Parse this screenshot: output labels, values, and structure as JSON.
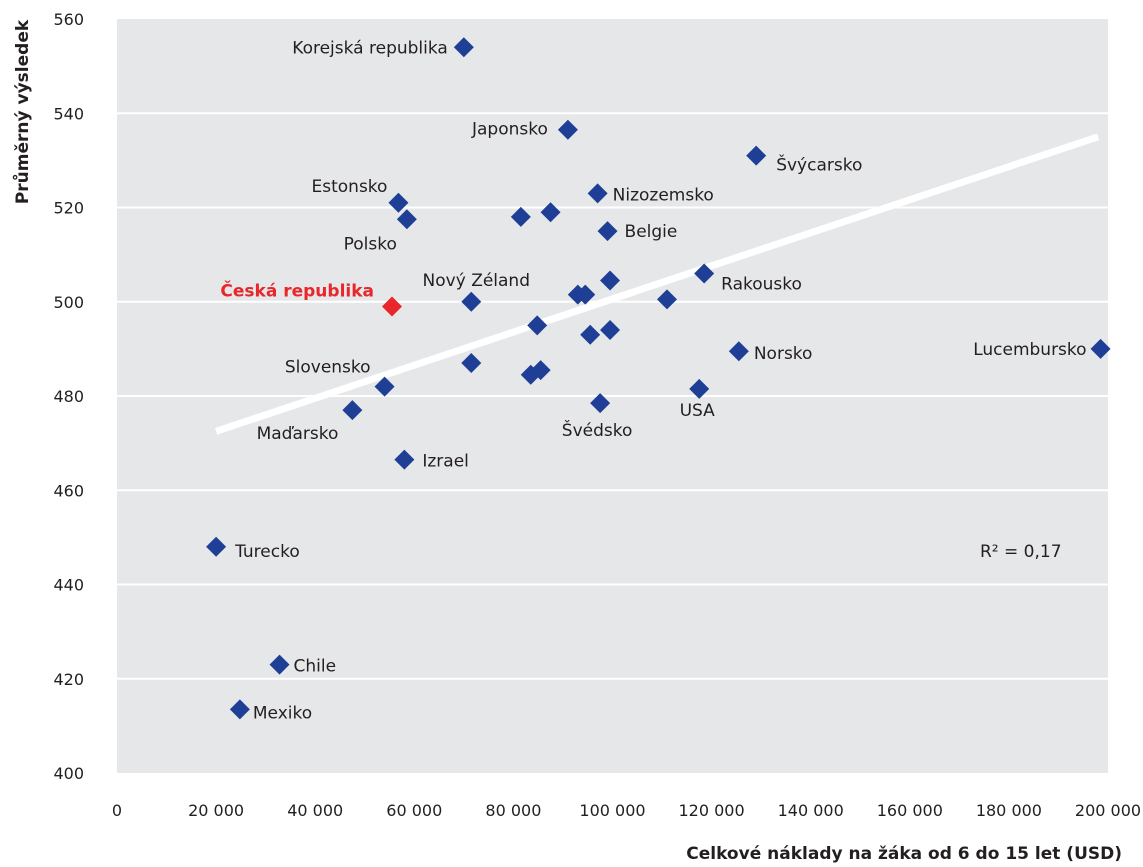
{
  "chart_data": {
    "type": "scatter",
    "title": "",
    "xlabel": "Celkové náklady na žáka od 6 do 15 let (USD)",
    "ylabel": "Průměrný výsledek",
    "xlim": [
      0,
      200000
    ],
    "ylim": [
      400,
      560
    ],
    "x_ticks": [
      0,
      20000,
      40000,
      60000,
      80000,
      100000,
      120000,
      140000,
      160000,
      180000,
      200000
    ],
    "x_tick_labels": [
      "0",
      "20 000",
      "40 000",
      "60 000",
      "80 000",
      "100 000",
      "120 000",
      "140 000",
      "160 000",
      "180 000",
      "200 000"
    ],
    "y_ticks": [
      400,
      420,
      440,
      460,
      480,
      500,
      520,
      540,
      560
    ],
    "y_tick_labels": [
      "400",
      "420",
      "440",
      "460",
      "480",
      "500",
      "520",
      "540",
      "560"
    ],
    "grid": "horizontal",
    "background_color": "#e6e7e9",
    "point_color": "#1f3f96",
    "highlight_color": "#e8262b",
    "trend_color": "#ffffff",
    "trendline": {
      "x": [
        20000,
        198000
      ],
      "y": [
        472.5,
        535
      ]
    },
    "annotation": "R² = 0,17",
    "points": [
      {
        "label": "Korejská republika",
        "x": 70000,
        "y": 554
      },
      {
        "label": "Japonsko",
        "x": 91000,
        "y": 536.5
      },
      {
        "label": "Švýcarsko",
        "x": 129000,
        "y": 531
      },
      {
        "label": "Estonsko",
        "x": 56800,
        "y": 521
      },
      {
        "label": "Polsko",
        "x": 58500,
        "y": 517.5
      },
      {
        "label": "",
        "x": 81500,
        "y": 518
      },
      {
        "label": "",
        "x": 87500,
        "y": 519
      },
      {
        "label": "Nizozemsko",
        "x": 97000,
        "y": 523
      },
      {
        "label": "Belgie",
        "x": 99000,
        "y": 515
      },
      {
        "label": "Česká republika",
        "x": 55500,
        "y": 499,
        "highlight": true
      },
      {
        "label": "Nový Zéland",
        "x": 71500,
        "y": 500
      },
      {
        "label": "",
        "x": 93000,
        "y": 501.5
      },
      {
        "label": "",
        "x": 94500,
        "y": 501.5
      },
      {
        "label": "",
        "x": 99500,
        "y": 504.5
      },
      {
        "label": "",
        "x": 111000,
        "y": 500.5
      },
      {
        "label": "Rakousko",
        "x": 118500,
        "y": 506
      },
      {
        "label": "",
        "x": 84800,
        "y": 495
      },
      {
        "label": "",
        "x": 95500,
        "y": 493
      },
      {
        "label": "",
        "x": 99500,
        "y": 494
      },
      {
        "label": "",
        "x": 71500,
        "y": 487
      },
      {
        "label": "",
        "x": 83500,
        "y": 484.5
      },
      {
        "label": "",
        "x": 85500,
        "y": 485.5
      },
      {
        "label": "Norsko",
        "x": 125500,
        "y": 489.5
      },
      {
        "label": "Lucembursko",
        "x": 198500,
        "y": 490
      },
      {
        "label": "Slovensko",
        "x": 54000,
        "y": 482
      },
      {
        "label": "Maďarsko",
        "x": 47500,
        "y": 477
      },
      {
        "label": "Švédsko",
        "x": 97500,
        "y": 478.5
      },
      {
        "label": "USA",
        "x": 117500,
        "y": 481.5
      },
      {
        "label": "Izrael",
        "x": 58000,
        "y": 466.5
      },
      {
        "label": "Turecko",
        "x": 20000,
        "y": 448
      },
      {
        "label": "Chile",
        "x": 32800,
        "y": 423
      },
      {
        "label": "Mexiko",
        "x": 24800,
        "y": 413.5
      }
    ]
  }
}
